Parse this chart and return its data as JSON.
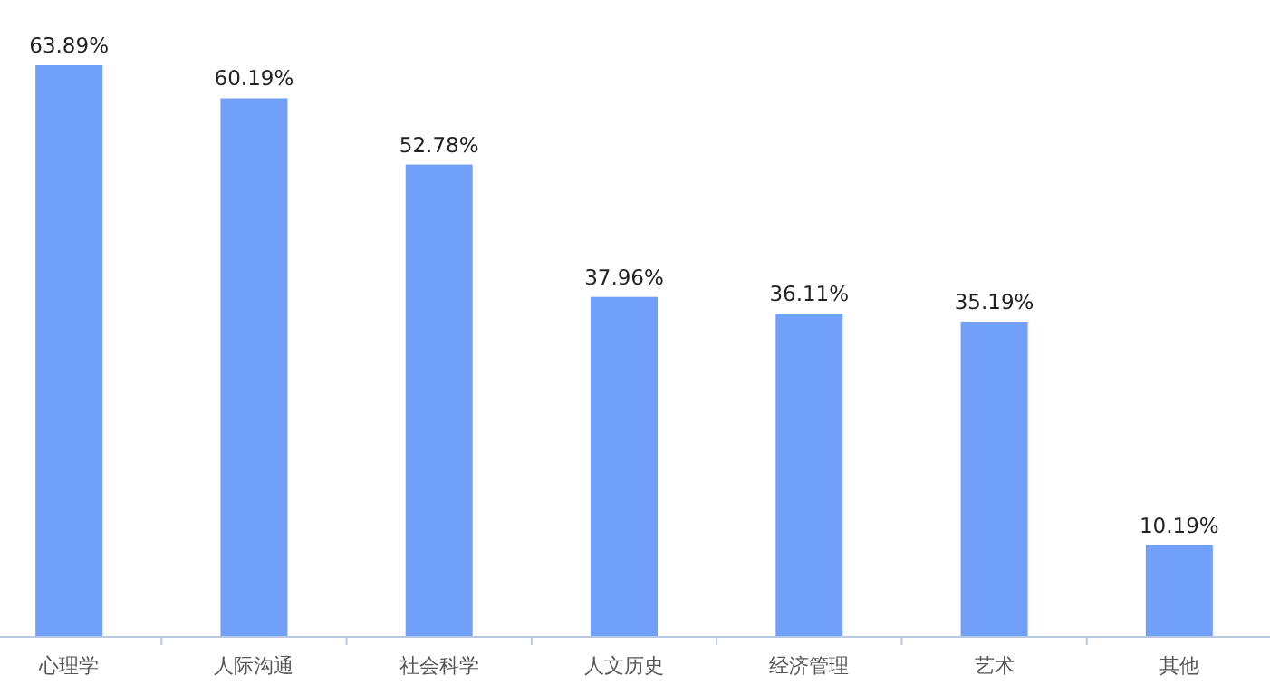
{
  "chart_data": {
    "type": "bar",
    "categories": [
      "心理学",
      "人际沟通",
      "社会科学",
      "人文历史",
      "经济管理",
      "艺术",
      "其他"
    ],
    "values": [
      63.89,
      60.19,
      52.78,
      37.96,
      36.11,
      35.19,
      10.19
    ],
    "value_labels": [
      "63.89%",
      "60.19%",
      "52.78%",
      "37.96%",
      "36.11%",
      "35.19%",
      "10.19%"
    ],
    "color": "#71a0fb",
    "grid": false,
    "legend": false
  }
}
